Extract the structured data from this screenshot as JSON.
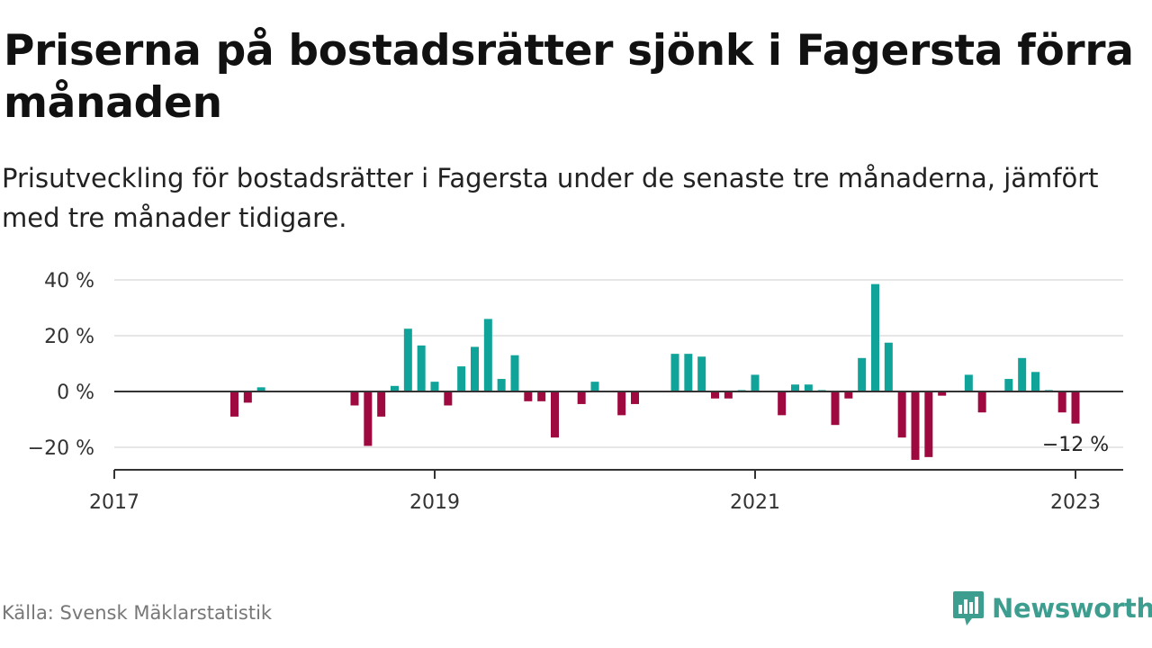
{
  "title": "Priserna på bostadsrätter sjönk i Fagersta förra månaden",
  "subtitle": "Prisutveckling för bostadsrätter i Fagersta under de senaste tre månaderna, jämfört med tre månader tidigare.",
  "source": "Källa: Svensk Mäklarstatistik",
  "brand": "Newsworthy",
  "colors": {
    "positive": "#0fa39a",
    "negative": "#9e0a3f",
    "brand": "#3d9e90"
  },
  "chart_data": {
    "type": "bar",
    "title": "Priserna på bostadsrätter sjönk i Fagersta förra månaden",
    "xlabel": "",
    "ylabel": "",
    "ylim": [
      -28,
      42
    ],
    "y_ticks": [
      40,
      20,
      0,
      -20
    ],
    "y_tick_labels": [
      "40 %",
      "20 %",
      "0 %",
      "−20 %"
    ],
    "x_ticks": [
      2017,
      2019,
      2021,
      2023
    ],
    "x_tick_labels": [
      "2017",
      "2019",
      "2021",
      "2023"
    ],
    "grid": true,
    "annotation": {
      "date": "2023-01",
      "text": "−12 %"
    },
    "series": [
      {
        "x": [
          "2017-10",
          "2017-11",
          "2017-12",
          "2018-07",
          "2018-08",
          "2018-09",
          "2018-10",
          "2018-11",
          "2018-12",
          "2019-01",
          "2019-02",
          "2019-03",
          "2019-04",
          "2019-05",
          "2019-06",
          "2019-07",
          "2019-08",
          "2019-09",
          "2019-10",
          "2019-12",
          "2020-01",
          "2020-03",
          "2020-04",
          "2020-07",
          "2020-08",
          "2020-09",
          "2020-10",
          "2020-11",
          "2020-12",
          "2021-01",
          "2021-03",
          "2021-04",
          "2021-05",
          "2021-06",
          "2021-07",
          "2021-08",
          "2021-09",
          "2021-10",
          "2021-11",
          "2021-12",
          "2022-01",
          "2022-02",
          "2022-03",
          "2022-05",
          "2022-06",
          "2022-08",
          "2022-09",
          "2022-10",
          "2022-11",
          "2022-12",
          "2023-01"
        ],
        "values": [
          -9,
          -4,
          1.5,
          -5,
          -19.5,
          -9,
          2,
          22.5,
          16.5,
          3.5,
          -5,
          9,
          16,
          26,
          4.5,
          13,
          -3.5,
          -3.5,
          -16.5,
          -4.5,
          3.5,
          -8.5,
          -4.5,
          13.5,
          13.5,
          12.5,
          -2.5,
          -2.5,
          0.5,
          6,
          -8.5,
          2.5,
          2.5,
          0.5,
          -12,
          -2.5,
          12,
          38.5,
          17.5,
          -16.5,
          -24.5,
          -23.5,
          -1.5,
          6,
          -7.5,
          4.5,
          12,
          7,
          0.5,
          -7.5,
          -11.5
        ]
      }
    ]
  }
}
